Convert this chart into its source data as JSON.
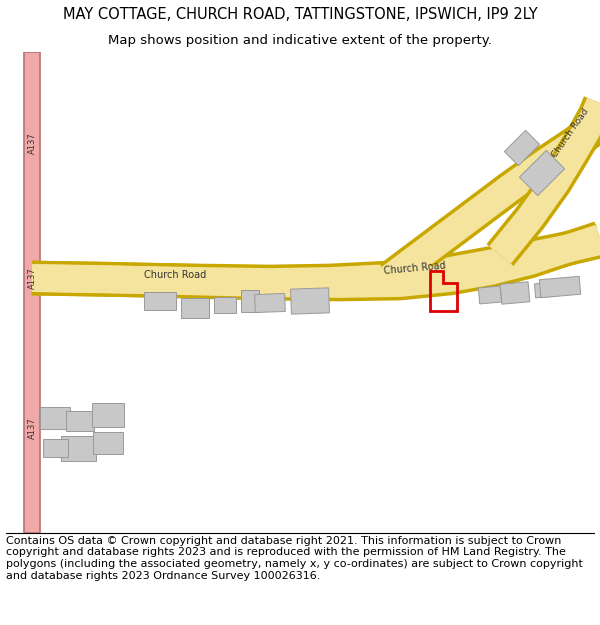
{
  "title": "MAY COTTAGE, CHURCH ROAD, TATTINGSTONE, IPSWICH, IP9 2LY",
  "subtitle": "Map shows position and indicative extent of the property.",
  "footer": "Contains OS data © Crown copyright and database right 2021. This information is subject to Crown copyright and database rights 2023 and is reproduced with the permission of HM Land Registry. The polygons (including the associated geometry, namely x, y co-ordinates) are subject to Crown copyright and database rights 2023 Ordnance Survey 100026316.",
  "road_color_yellow": "#f5e49e",
  "road_color_yellow_border": "#c8a800",
  "road_color_pink": "#f0a8a8",
  "road_border_pink": "#b87070",
  "building_color": "#c8c8c8",
  "building_border": "#999999",
  "plot_color": "#dd0000",
  "map_bg": "#ffffff",
  "title_fontsize": 10.5,
  "subtitle_fontsize": 9.5,
  "footer_fontsize": 8.0
}
